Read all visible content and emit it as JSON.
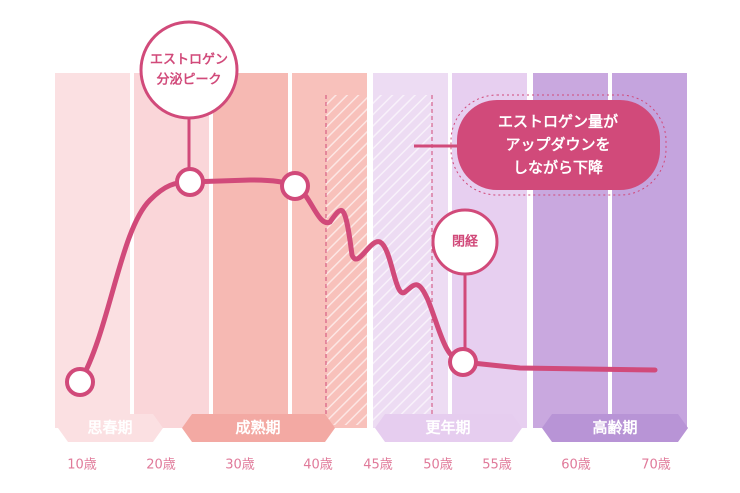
{
  "callouts": {
    "peak": {
      "lines": [
        "エストロゲン",
        "分泌ピーク"
      ]
    },
    "menopause": {
      "label": "閉経"
    },
    "message": {
      "lines": [
        "エストロゲン量が",
        "アップダウンを",
        "しながら下降"
      ]
    }
  },
  "stages": [
    {
      "label": "思春期"
    },
    {
      "label": "成熟期"
    },
    {
      "label": "更年期"
    },
    {
      "label": "高齢期"
    }
  ],
  "ages": [
    "10歳",
    "20歳",
    "30歳",
    "40歳",
    "45歳",
    "50歳",
    "55歳",
    "60歳",
    "70歳"
  ]
}
